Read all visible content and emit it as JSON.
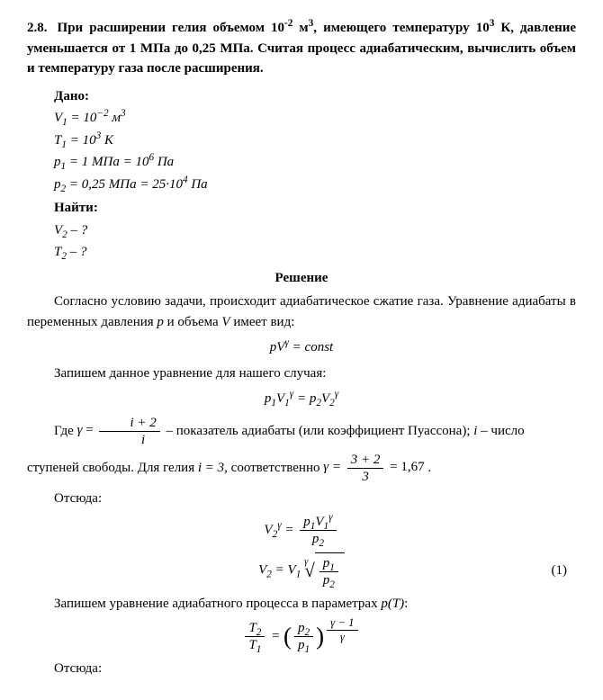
{
  "problem": {
    "number": "2.8.",
    "statement": "При расширении гелия объемом 10⁻² м³, имеющего температуру 10³ К, давление уменьшается от 1 МПа до 0,25 МПа. Считая процесс адиабатическим, вычислить объем и температуру газа после расширения."
  },
  "given": {
    "header": "Дано:",
    "lines": {
      "V1": "V₁ = 10⁻² м³",
      "T1": "T₁ = 10³ К",
      "p1": "p₁ = 1 МПа = 10⁶ Па",
      "p2": "p₂ = 0,25 МПа = 25·10⁴ Па"
    }
  },
  "find": {
    "header": "Найти:",
    "lines": {
      "V2": "V₂ – ?",
      "T2": "T₂ – ?"
    }
  },
  "solution": {
    "header": "Решение",
    "para1": "Согласно условию задачи, происходит адиабатическое сжатие газа. Уравнение адиабаты в переменных давления p и объема V имеет вид:",
    "eq1": "pVᵞ = const",
    "para2": "Запишем данное уравнение для нашего случая:",
    "eq2": "p₁V₁ᵞ = p₂V₂ᵞ",
    "para3_pre": "Где ",
    "para3_gamma": "γ",
    "para3_eq": " = ",
    "para3_frac_num": "i + 2",
    "para3_frac_den": "i",
    "para3_post": " – показатель адиабаты (или коэффициент Пуассона); i – число",
    "para4_pre": "ступеней свободы. Для гелия ",
    "para4_i": "i = 3",
    "para4_mid": ", соответственно ",
    "para4_gamma": "γ = ",
    "para4_frac_num": "3 + 2",
    "para4_frac_den": "3",
    "para4_result": " = 1,67",
    "para4_dot": ".",
    "para5": "Отсюда:",
    "eq3a_lhs": "V₂ᵞ = ",
    "eq3a_num": "p₁V₁ᵞ",
    "eq3a_den": "p₂",
    "eq3b_lhs": "V₂ = V₁ ",
    "eq3b_root_index": "γ",
    "eq3b_frac_num": "p₁",
    "eq3b_frac_den": "p₂",
    "eq3b_number": "(1)",
    "para6_pre": "Запишем уравнение адиабатного процесса в параметрах ",
    "para6_pT": "p(T)",
    "para6_post": ":",
    "eq4_lhs_num": "T₂",
    "eq4_lhs_den": "T₁",
    "eq4_eq": " = ",
    "eq4_rhs_num": "p₂",
    "eq4_rhs_den": "p₁",
    "eq4_exp_num": "γ − 1",
    "eq4_exp_den": "γ",
    "para7": "Отсюда:"
  }
}
